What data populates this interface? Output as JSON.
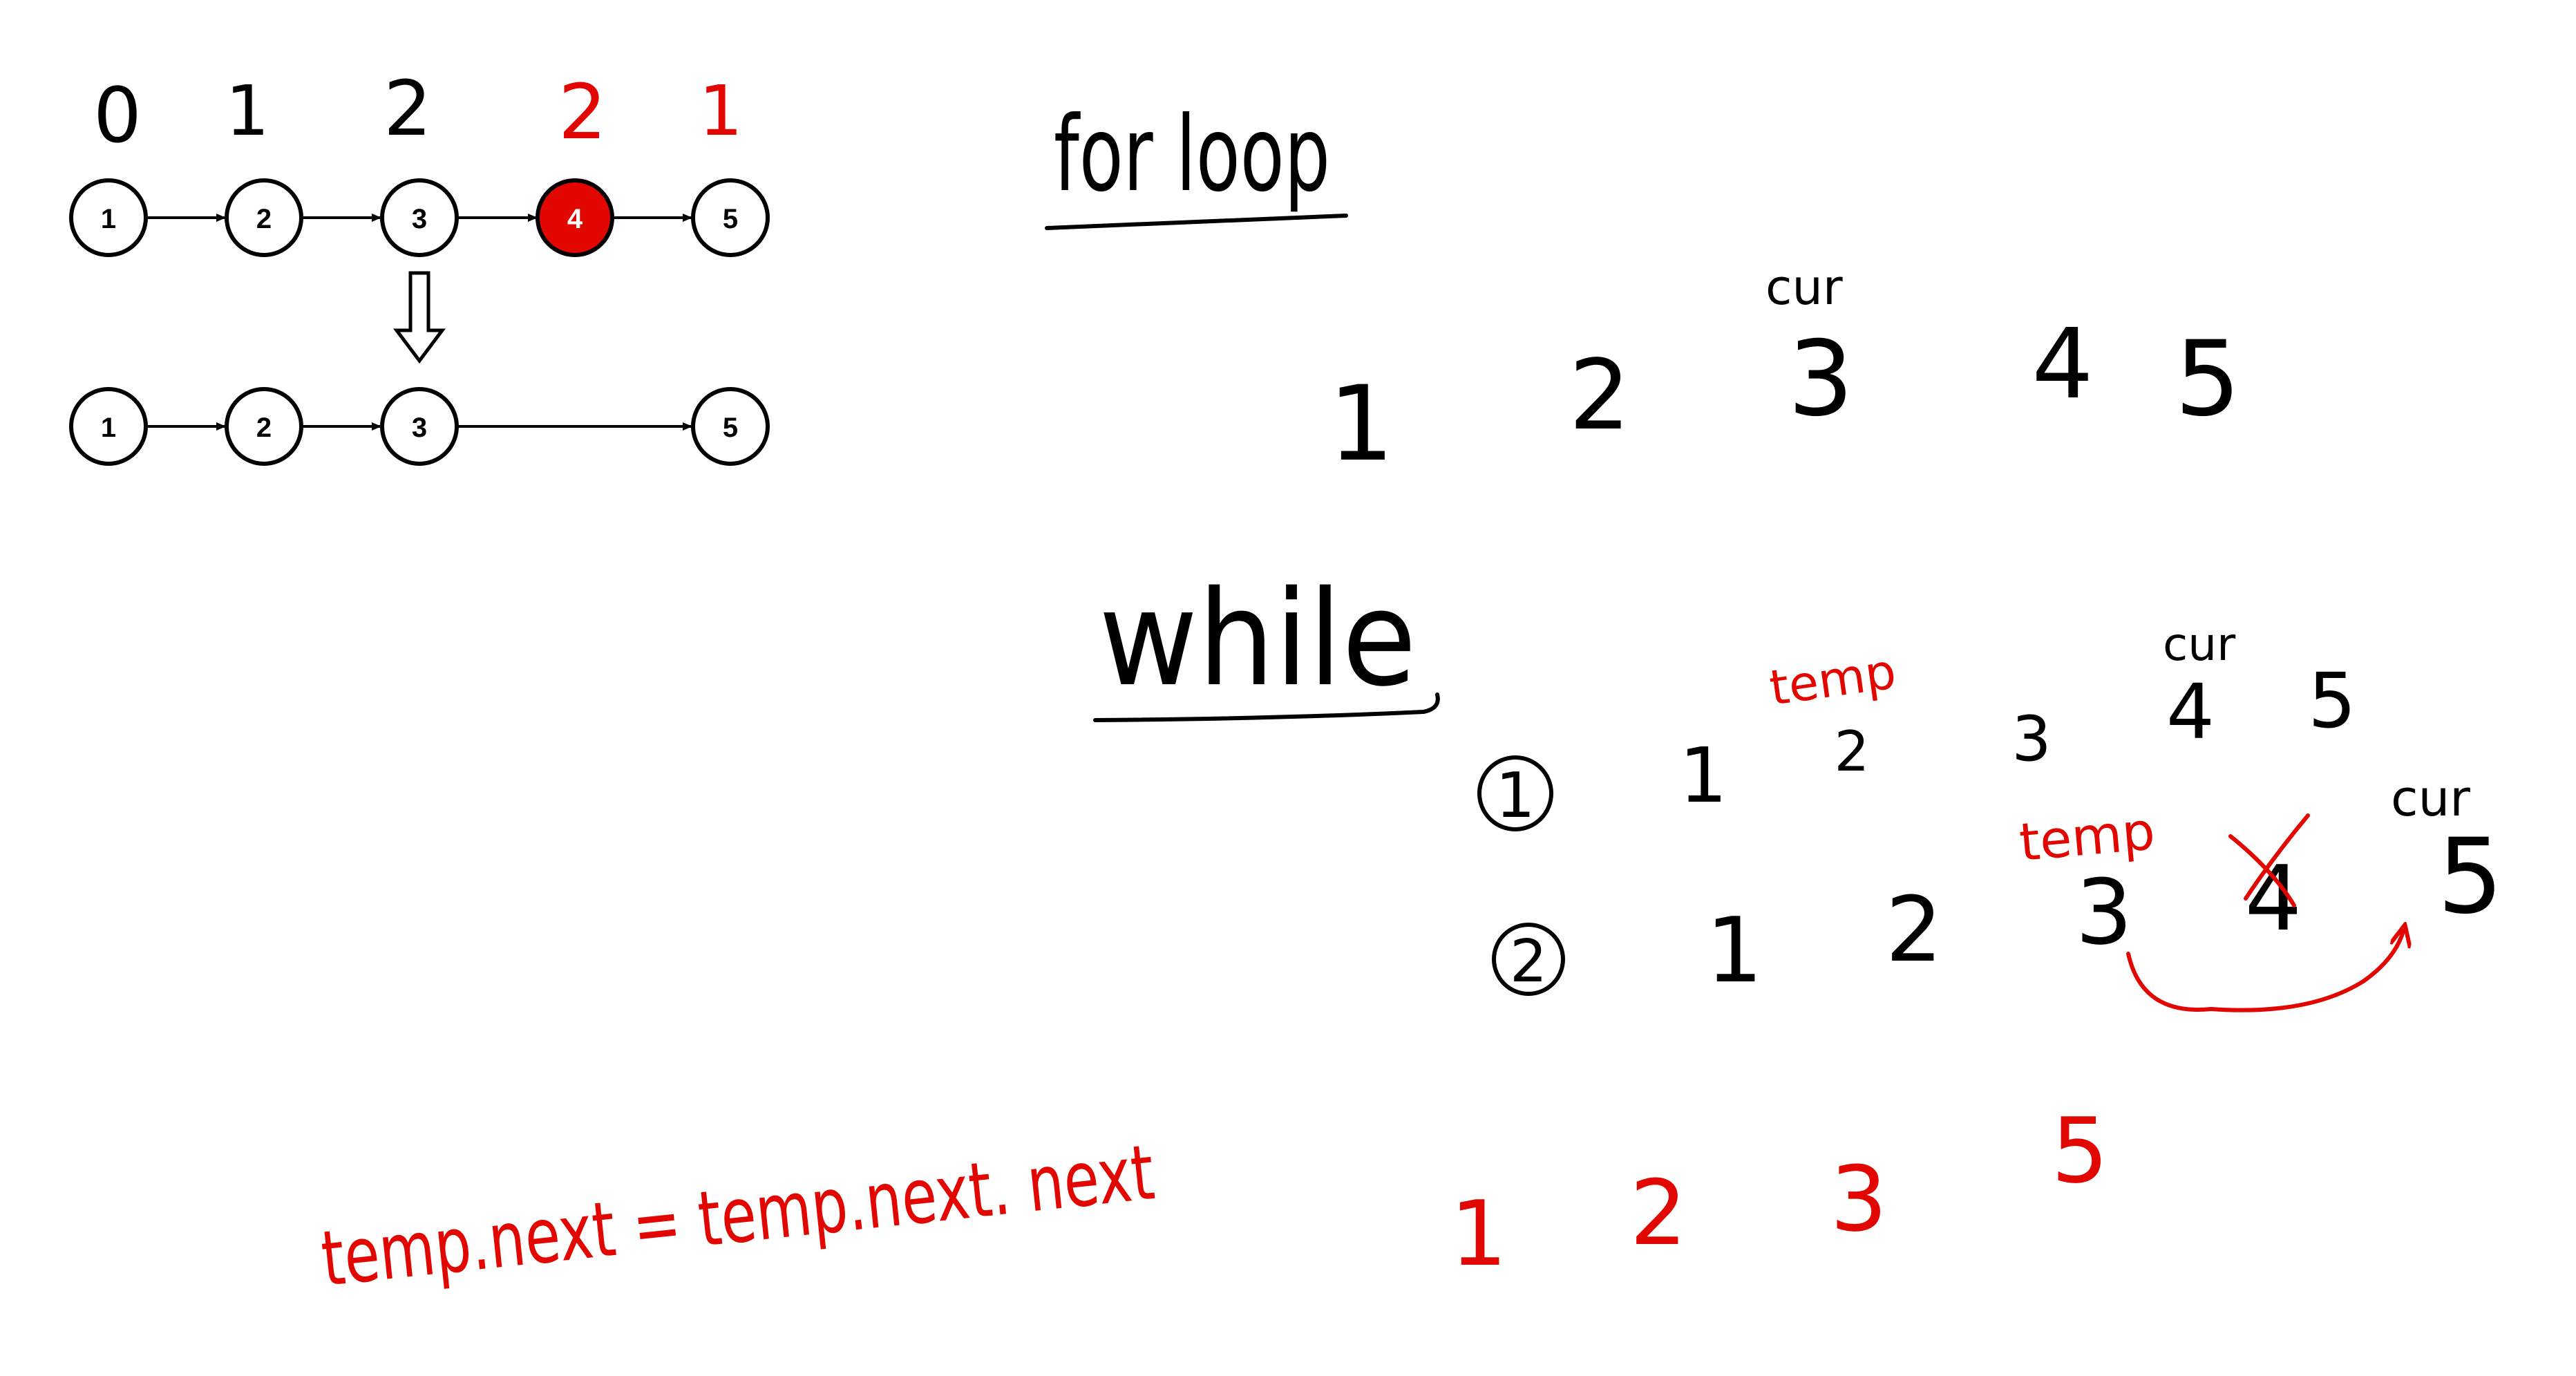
{
  "colors": {
    "ink": "#000000",
    "accent": "#e10600",
    "background": "#ffffff"
  },
  "diagram": {
    "index_labels": [
      "0",
      "1",
      "2",
      "2",
      "1"
    ],
    "top_list": [
      "1",
      "2",
      "3",
      "4",
      "5"
    ],
    "removed_value": "4",
    "bottom_list": [
      "1",
      "2",
      "3",
      "5"
    ],
    "transform_icon": "down-arrow-icon"
  },
  "notes": {
    "for_loop_heading": "for loop",
    "for_loop_cur": "cur",
    "for_loop_values": [
      "1",
      "2",
      "3",
      "4",
      "5"
    ],
    "while_heading": "while",
    "while_cur_top": "cur",
    "while_temp_top": "temp",
    "step1_marker": "1",
    "step1_values": [
      "1",
      "2",
      "3",
      "4",
      "5"
    ],
    "step2_marker": "2",
    "step2_values": [
      "1",
      "2",
      "3",
      "4",
      "5"
    ],
    "step2_temp": "temp",
    "step2_cur": "cur",
    "code": "temp.next = temp.next. next",
    "result_values": [
      "1",
      "2",
      "3",
      "5"
    ]
  }
}
